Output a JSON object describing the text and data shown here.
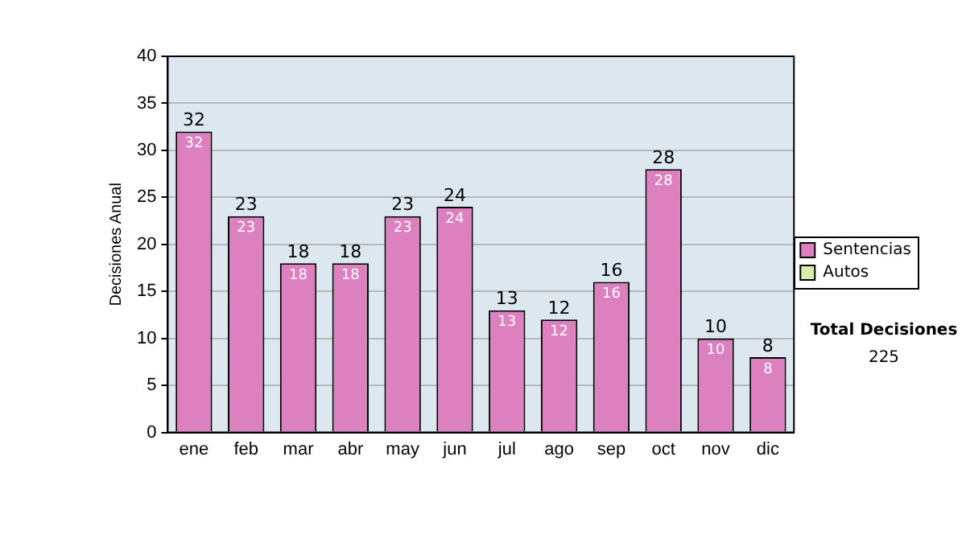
{
  "chart_data": {
    "type": "bar",
    "stacked": true,
    "ylabel": "Decisiones Anual",
    "categories": [
      "ene",
      "feb",
      "mar",
      "abr",
      "may",
      "jun",
      "jul",
      "ago",
      "sep",
      "oct",
      "nov",
      "dic"
    ],
    "series": [
      {
        "name": "Sentencias",
        "color": "#dd80bf",
        "values": [
          32,
          23,
          18,
          18,
          23,
          24,
          13,
          12,
          16,
          28,
          10,
          8
        ],
        "value_labels": [
          "32",
          "23",
          "18",
          "18",
          "23",
          "24",
          "13",
          "12",
          "16",
          "28",
          "10",
          "8"
        ]
      },
      {
        "name": "Autos",
        "color": "#d8ecac",
        "values": [
          0,
          0,
          0,
          0,
          0,
          0,
          0,
          0,
          0,
          0,
          0,
          0
        ]
      }
    ],
    "totals": [
      "32",
      "23",
      "18",
      "18",
      "23",
      "24",
      "13",
      "12",
      "16",
      "28",
      "10",
      "8"
    ],
    "ylim": [
      0,
      40
    ],
    "yticks": [
      0,
      5,
      10,
      15,
      20,
      25,
      30,
      35,
      40
    ],
    "grid": "y",
    "legend": "right",
    "annotations": [
      "Total Decisiones",
      "225"
    ]
  }
}
